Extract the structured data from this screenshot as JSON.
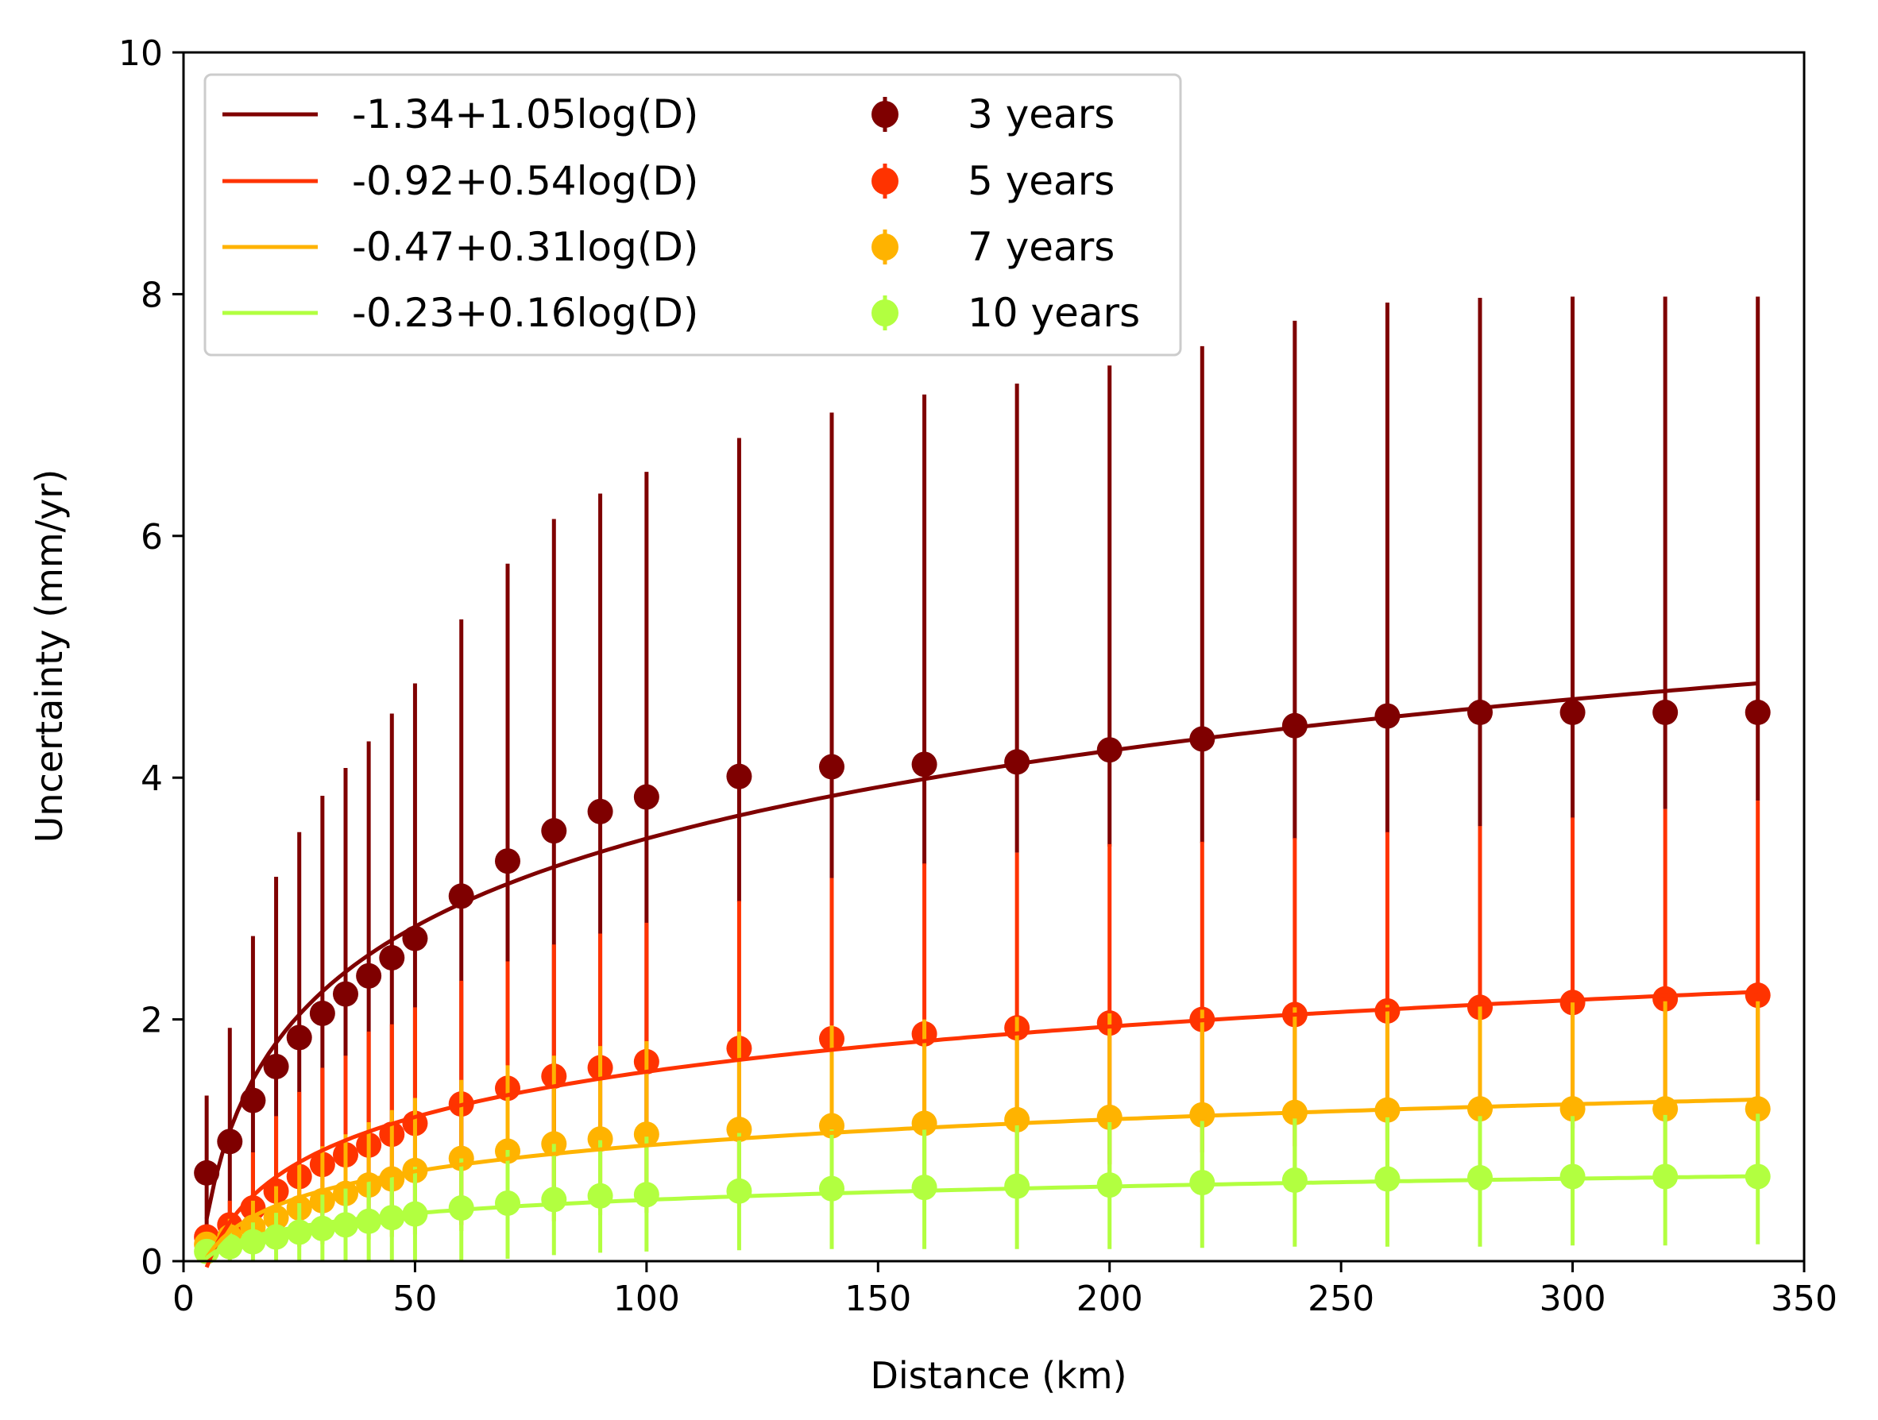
{
  "chart_data": {
    "type": "line",
    "title": "",
    "xlabel": "Distance (km)",
    "ylabel": "Uncertainty (mm/yr)",
    "xlim": [
      0,
      350
    ],
    "ylim": [
      0,
      10
    ],
    "xticks": [
      0,
      50,
      100,
      150,
      200,
      250,
      300,
      350
    ],
    "yticks": [
      0,
      2,
      4,
      6,
      8,
      10
    ],
    "grid": false,
    "legend_position": "top-left",
    "legend_columns": 2,
    "x": [
      5,
      10,
      15,
      20,
      25,
      30,
      35,
      40,
      45,
      50,
      60,
      70,
      80,
      90,
      100,
      120,
      140,
      160,
      180,
      200,
      220,
      240,
      260,
      280,
      300,
      320,
      340
    ],
    "fits": [
      {
        "label": "-1.34+1.05log(D)",
        "a": -1.34,
        "b": 1.05,
        "color": "#7f0000"
      },
      {
        "label": "-0.92+0.54log(D)",
        "a": -0.92,
        "b": 0.54,
        "color": "#ff3300"
      },
      {
        "label": "-0.47+0.31log(D)",
        "a": -0.47,
        "b": 0.31,
        "color": "#ffb300"
      },
      {
        "label": "-0.23+0.16log(D)",
        "a": -0.23,
        "b": 0.16,
        "color": "#b2ff40"
      }
    ],
    "series": [
      {
        "name": "3 years",
        "color": "#7f0000",
        "values": [
          0.73,
          0.99,
          1.33,
          1.61,
          1.85,
          2.05,
          2.21,
          2.36,
          2.51,
          2.67,
          3.02,
          3.31,
          3.56,
          3.72,
          3.84,
          4.01,
          4.09,
          4.11,
          4.13,
          4.23,
          4.32,
          4.43,
          4.51,
          4.54,
          4.54,
          4.54,
          4.54
        ],
        "lower": [
          0.08,
          0.06,
          0.25,
          0.4,
          0.6,
          0.82,
          0.96,
          1.06,
          1.1,
          1.12,
          0.75,
          0.95,
          1.0,
          1.12,
          1.15,
          2.97,
          3.17,
          3.28,
          3.38,
          3.43,
          3.46,
          3.49,
          3.54,
          3.59,
          3.66,
          3.74,
          3.81
        ],
        "upper": [
          1.37,
          1.93,
          2.69,
          3.18,
          3.55,
          3.85,
          4.08,
          4.3,
          4.53,
          4.78,
          5.31,
          5.77,
          6.14,
          6.35,
          6.53,
          6.81,
          7.02,
          7.17,
          7.26,
          7.41,
          7.57,
          7.78,
          7.93,
          7.97,
          7.98,
          7.98,
          7.98
        ]
      },
      {
        "name": "5 years",
        "color": "#ff3300",
        "values": [
          0.2,
          0.3,
          0.44,
          0.58,
          0.7,
          0.8,
          0.88,
          0.96,
          1.05,
          1.14,
          1.3,
          1.43,
          1.53,
          1.6,
          1.65,
          1.76,
          1.84,
          1.88,
          1.93,
          1.97,
          2.0,
          2.04,
          2.07,
          2.1,
          2.14,
          2.17,
          2.2
        ],
        "lower": [
          0.08,
          0.1,
          0.12,
          0.15,
          0.2,
          0.28,
          0.35,
          0.38,
          0.4,
          0.45,
          0.3,
          0.35,
          0.45,
          0.48,
          0.5,
          0.55,
          0.6,
          0.65,
          0.75,
          0.8,
          0.9,
          0.95,
          1.0,
          1.05,
          1.1,
          1.15,
          1.2
        ],
        "upper": [
          0.3,
          0.5,
          0.9,
          1.2,
          1.4,
          1.6,
          1.7,
          1.9,
          1.96,
          2.1,
          2.32,
          2.48,
          2.62,
          2.71,
          2.8,
          2.98,
          3.17,
          3.29,
          3.38,
          3.45,
          3.47,
          3.5,
          3.55,
          3.6,
          3.67,
          3.74,
          3.81
        ]
      },
      {
        "name": "7 years",
        "color": "#ffb300",
        "values": [
          0.14,
          0.2,
          0.28,
          0.36,
          0.44,
          0.5,
          0.56,
          0.63,
          0.68,
          0.75,
          0.85,
          0.91,
          0.97,
          1.01,
          1.05,
          1.09,
          1.12,
          1.14,
          1.17,
          1.19,
          1.21,
          1.23,
          1.25,
          1.26,
          1.26,
          1.26,
          1.26
        ],
        "lower": [
          0.05,
          0.06,
          0.08,
          0.1,
          0.12,
          0.14,
          0.16,
          0.18,
          0.2,
          0.22,
          0.25,
          0.3,
          0.33,
          0.38,
          0.4,
          0.45,
          0.5,
          0.55,
          0.58,
          0.6,
          0.62,
          0.65,
          0.68,
          0.7,
          0.72,
          0.74,
          0.76
        ],
        "upper": [
          0.22,
          0.35,
          0.5,
          0.62,
          0.8,
          0.95,
          1.05,
          1.15,
          1.25,
          1.35,
          1.5,
          1.62,
          1.7,
          1.78,
          1.82,
          1.9,
          1.95,
          2.0,
          2.02,
          2.05,
          2.08,
          2.1,
          2.12,
          2.13,
          2.14,
          2.15,
          2.15
        ]
      },
      {
        "name": "10 years",
        "color": "#b2ff40",
        "values": [
          0.08,
          0.12,
          0.16,
          0.2,
          0.24,
          0.27,
          0.3,
          0.33,
          0.36,
          0.39,
          0.44,
          0.48,
          0.51,
          0.54,
          0.55,
          0.58,
          0.6,
          0.61,
          0.62,
          0.63,
          0.65,
          0.67,
          0.68,
          0.69,
          0.7,
          0.7,
          0.7
        ],
        "lower": [
          0.0,
          0.0,
          0.0,
          0.0,
          0.0,
          0.0,
          0.0,
          0.0,
          0.0,
          0.0,
          0.0,
          0.02,
          0.05,
          0.07,
          0.08,
          0.09,
          0.1,
          0.1,
          0.1,
          0.1,
          0.11,
          0.12,
          0.12,
          0.12,
          0.13,
          0.13,
          0.14
        ],
        "upper": [
          0.18,
          0.25,
          0.32,
          0.4,
          0.48,
          0.55,
          0.6,
          0.68,
          0.72,
          0.78,
          0.85,
          0.92,
          0.97,
          1.0,
          1.03,
          1.06,
          1.09,
          1.11,
          1.13,
          1.15,
          1.16,
          1.18,
          1.19,
          1.2,
          1.2,
          1.21,
          1.22
        ]
      }
    ]
  }
}
